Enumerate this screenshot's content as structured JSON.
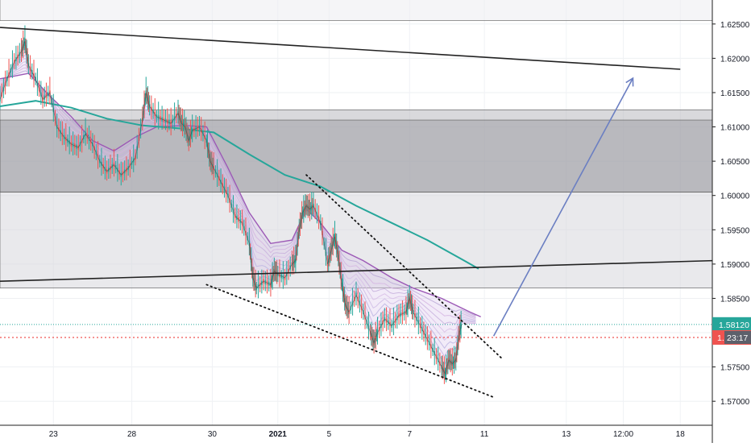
{
  "chart_data": {
    "type": "line",
    "instrument_note": "",
    "y_axis": {
      "ticks": [
        "1.62500",
        "1.62000",
        "1.61500",
        "1.61000",
        "1.60500",
        "1.60000",
        "1.59500",
        "1.59000",
        "1.58500",
        "1.58000",
        "1.57500",
        "1.57000"
      ],
      "tick_values": [
        1.625,
        1.62,
        1.615,
        1.61,
        1.605,
        1.6,
        1.595,
        1.59,
        1.585,
        1.58,
        1.575,
        1.57
      ],
      "range": [
        1.5665,
        1.6285
      ]
    },
    "x_axis": {
      "ticks": [
        "23",
        "28",
        "30",
        "2021",
        "5",
        "7",
        "11",
        "13",
        "12:00",
        "18"
      ],
      "bold_ticks": [
        "2021"
      ]
    },
    "price_labels": {
      "last_price": "1.58120",
      "current_partial": "1.",
      "countdown": "23:17",
      "last_price_value": 1.5812,
      "prev_close_value": 1.5793
    },
    "zones": [
      {
        "top": 1.6125,
        "bottom": 1.6005,
        "color": "#b9b9c0"
      },
      {
        "top": 1.611,
        "bottom": 1.6005,
        "color": "#9e9ea6"
      },
      {
        "top": 1.6005,
        "bottom": 1.5865,
        "color": "#d7d7dc"
      },
      {
        "top": 1.633,
        "bottom": 1.6255,
        "color": "#ececf0"
      }
    ],
    "lines": [
      {
        "kind": "trend",
        "x1": 0.0,
        "y1": 1.6245,
        "x2": 0.955,
        "y2": 1.6184,
        "color": "#222222"
      },
      {
        "kind": "trend",
        "x1": 0.0,
        "y1": 1.5875,
        "x2": 1.0,
        "y2": 1.5905,
        "color": "#222222"
      },
      {
        "kind": "dotted",
        "x1": 0.43,
        "y1": 1.603,
        "x2": 0.705,
        "y2": 1.5762,
        "color": "#111111"
      },
      {
        "kind": "dotted",
        "x1": 0.29,
        "y1": 1.587,
        "x2": 0.695,
        "y2": 1.5705,
        "color": "#111111"
      },
      {
        "kind": "arrow",
        "x1": 0.693,
        "y1": 1.5795,
        "x2": 0.888,
        "y2": 1.617,
        "color": "#6b7fc2"
      }
    ],
    "ema_slow": {
      "color": "#26a69a",
      "values": [
        [
          0.0,
          1.613
        ],
        [
          0.05,
          1.6138
        ],
        [
          0.1,
          1.6128
        ],
        [
          0.15,
          1.6112
        ],
        [
          0.2,
          1.6102
        ],
        [
          0.25,
          1.6098
        ],
        [
          0.3,
          1.6092
        ],
        [
          0.35,
          1.606
        ],
        [
          0.4,
          1.603
        ],
        [
          0.45,
          1.6013
        ],
        [
          0.5,
          1.5985
        ],
        [
          0.55,
          1.596
        ],
        [
          0.6,
          1.5935
        ],
        [
          0.65,
          1.5906
        ],
        [
          0.672,
          1.5893
        ]
      ]
    },
    "ema_fast": {
      "color": "#9c59b6",
      "values": [
        [
          0.0,
          1.617
        ],
        [
          0.04,
          1.6178
        ],
        [
          0.07,
          1.6145
        ],
        [
          0.1,
          1.6115
        ],
        [
          0.13,
          1.608
        ],
        [
          0.16,
          1.6065
        ],
        [
          0.19,
          1.6085
        ],
        [
          0.22,
          1.61
        ],
        [
          0.26,
          1.6102
        ],
        [
          0.29,
          1.61
        ],
        [
          0.32,
          1.604
        ],
        [
          0.35,
          1.5975
        ],
        [
          0.38,
          1.593
        ],
        [
          0.41,
          1.5935
        ],
        [
          0.43,
          1.598
        ],
        [
          0.45,
          1.596
        ],
        [
          0.48,
          1.592
        ],
        [
          0.51,
          1.5905
        ],
        [
          0.55,
          1.588
        ],
        [
          0.58,
          1.5865
        ],
        [
          0.62,
          1.585
        ],
        [
          0.66,
          1.583
        ],
        [
          0.675,
          1.5823
        ]
      ]
    },
    "price": {
      "color": "#3b3b3b",
      "values": [
        [
          0.0,
          1.614
        ],
        [
          0.01,
          1.617
        ],
        [
          0.02,
          1.6195
        ],
        [
          0.03,
          1.621
        ],
        [
          0.035,
          1.6225
        ],
        [
          0.04,
          1.619
        ],
        [
          0.05,
          1.617
        ],
        [
          0.06,
          1.614
        ],
        [
          0.07,
          1.615
        ],
        [
          0.08,
          1.61
        ],
        [
          0.09,
          1.6085
        ],
        [
          0.1,
          1.6075
        ],
        [
          0.11,
          1.607
        ],
        [
          0.12,
          1.609
        ],
        [
          0.13,
          1.6075
        ],
        [
          0.14,
          1.605
        ],
        [
          0.15,
          1.6035
        ],
        [
          0.16,
          1.6045
        ],
        [
          0.17,
          1.603
        ],
        [
          0.18,
          1.604
        ],
        [
          0.19,
          1.6055
        ],
        [
          0.2,
          1.611
        ],
        [
          0.205,
          1.615
        ],
        [
          0.21,
          1.613
        ],
        [
          0.22,
          1.6115
        ],
        [
          0.23,
          1.611
        ],
        [
          0.24,
          1.6105
        ],
        [
          0.25,
          1.612
        ],
        [
          0.255,
          1.6105
        ],
        [
          0.26,
          1.61
        ],
        [
          0.265,
          1.608
        ],
        [
          0.27,
          1.6095
        ],
        [
          0.28,
          1.61
        ],
        [
          0.29,
          1.608
        ],
        [
          0.295,
          1.605
        ],
        [
          0.3,
          1.604
        ],
        [
          0.31,
          1.602
        ],
        [
          0.32,
          1.6
        ],
        [
          0.33,
          1.597
        ],
        [
          0.34,
          1.596
        ],
        [
          0.35,
          1.593
        ],
        [
          0.355,
          1.588
        ],
        [
          0.36,
          1.5865
        ],
        [
          0.37,
          1.5875
        ],
        [
          0.38,
          1.587
        ],
        [
          0.385,
          1.589
        ],
        [
          0.39,
          1.5885
        ],
        [
          0.4,
          1.588
        ],
        [
          0.41,
          1.59
        ],
        [
          0.415,
          1.5905
        ],
        [
          0.42,
          1.595
        ],
        [
          0.425,
          1.5975
        ],
        [
          0.43,
          1.5985
        ],
        [
          0.435,
          1.598
        ],
        [
          0.44,
          1.5985
        ],
        [
          0.45,
          1.596
        ],
        [
          0.46,
          1.59
        ],
        [
          0.465,
          1.592
        ],
        [
          0.47,
          1.594
        ],
        [
          0.475,
          1.591
        ],
        [
          0.48,
          1.587
        ],
        [
          0.485,
          1.584
        ],
        [
          0.49,
          1.583
        ],
        [
          0.5,
          1.5855
        ],
        [
          0.51,
          1.583
        ],
        [
          0.52,
          1.58
        ],
        [
          0.525,
          1.5785
        ],
        [
          0.53,
          1.58
        ],
        [
          0.54,
          1.582
        ],
        [
          0.55,
          1.581
        ],
        [
          0.56,
          1.5825
        ],
        [
          0.57,
          1.583
        ],
        [
          0.575,
          1.585
        ],
        [
          0.58,
          1.583
        ],
        [
          0.59,
          1.581
        ],
        [
          0.6,
          1.579
        ],
        [
          0.61,
          1.577
        ],
        [
          0.62,
          1.575
        ],
        [
          0.625,
          1.574
        ],
        [
          0.63,
          1.576
        ],
        [
          0.635,
          1.5755
        ],
        [
          0.64,
          1.576
        ],
        [
          0.645,
          1.58
        ],
        [
          0.648,
          1.5812
        ]
      ]
    },
    "grid": true,
    "legend": "none"
  }
}
